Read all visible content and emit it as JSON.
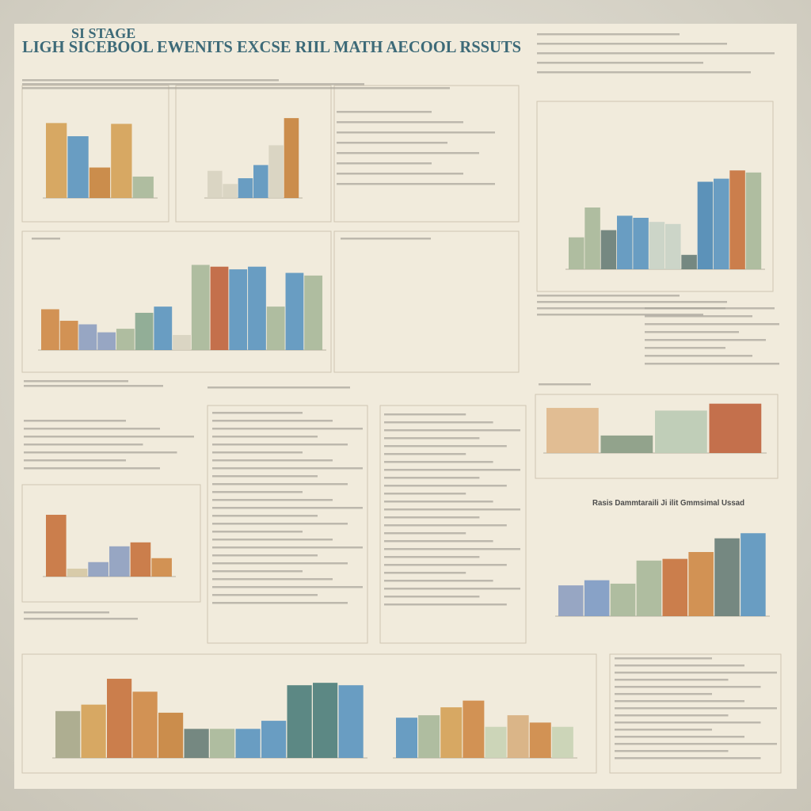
{
  "header": {
    "kicker": "SI STAGE",
    "title": "LIGH SICEBOOL EWENITS EXCSE RIIL MATH AECOOL RSSUTS",
    "caption": "Rasis Dammtaraili Ji ilit Gmmsimal Ussad"
  },
  "charts": [
    {
      "type": "bar",
      "values": [
        91,
        75,
        37,
        90,
        26
      ],
      "colors": [
        "#d5a258",
        "#5d96bf",
        "#c8843f",
        "#d5a258",
        "#a9b99a"
      ]
    },
    {
      "type": "bar",
      "values": [
        33,
        17,
        24,
        40,
        64,
        97
      ],
      "colors": [
        "#d8d3c0",
        "#d8d3c0",
        "#5d96bf",
        "#5d96bf",
        "#d8d3c0",
        "#c8843f"
      ]
    },
    {
      "type": "bar",
      "values": [
        46,
        33,
        29,
        20,
        24,
        42,
        49,
        17,
        96,
        94,
        91,
        94,
        49,
        87,
        84
      ],
      "colors": [
        "#cf8a48",
        "#cf8a48",
        "#8fa0c0",
        "#8fa0c0",
        "#a9b99a",
        "#8aa890",
        "#5d96bf",
        "#d8d3c0",
        "#a9b99a",
        "#c0653f",
        "#5d96bf",
        "#5d96bf",
        "#a9b99a",
        "#5d96bf",
        "#a9b99a"
      ]
    },
    {
      "type": "bar",
      "values": [
        31,
        60,
        38,
        52,
        50,
        46,
        44,
        14,
        85,
        88,
        96,
        94
      ],
      "colors": [
        "#a9b99a",
        "#a9b99a",
        "#6a7f78",
        "#5d96bf",
        "#5d96bf",
        "#c9d3c5",
        "#c9d3c5",
        "#6a7f78",
        "#4f8ab5",
        "#5d96bf",
        "#c8743f",
        "#a9b99a"
      ]
    },
    {
      "type": "bar",
      "values": [
        85,
        33,
        80,
        93
      ],
      "colors": [
        "#e0b98c",
        "#8a9c84",
        "#bccbb4",
        "#c0653f"
      ]
    },
    {
      "type": "bar",
      "values": [
        94,
        12,
        22,
        46,
        52,
        28
      ],
      "colors": [
        "#c8743f",
        "#d6c8a4",
        "#8fa0c0",
        "#8fa0c0",
        "#c8743f",
        "#cf8a48"
      ]
    },
    {
      "type": "bar",
      "values": [
        36,
        42,
        38,
        65,
        67,
        75,
        91,
        97
      ],
      "colors": [
        "#8fa0c0",
        "#7f9bc4",
        "#a9b99a",
        "#a9b99a",
        "#c8743f",
        "#cf8a48",
        "#6a7f78",
        "#5d96bf"
      ]
    },
    {
      "type": "bar",
      "values": [
        58,
        66,
        98,
        82,
        56,
        36,
        36,
        36,
        46,
        90,
        93,
        90
      ],
      "colors": [
        "#a8a88a",
        "#d5a258",
        "#c8743f",
        "#cf8a48",
        "#c8843f",
        "#6a7f78",
        "#a9b99a",
        "#5d96bf",
        "#5d96bf",
        "#4f7f7c",
        "#4f7f7c",
        "#5d96bf"
      ]
    },
    {
      "type": "bar",
      "values": [
        66,
        70,
        83,
        94,
        51,
        70,
        58,
        51
      ],
      "colors": [
        "#5d96bf",
        "#a9b99a",
        "#d5a258",
        "#cf8a48",
        "#c9d3b4",
        "#d8b080",
        "#cf8a48",
        "#c9d3b4"
      ]
    }
  ]
}
